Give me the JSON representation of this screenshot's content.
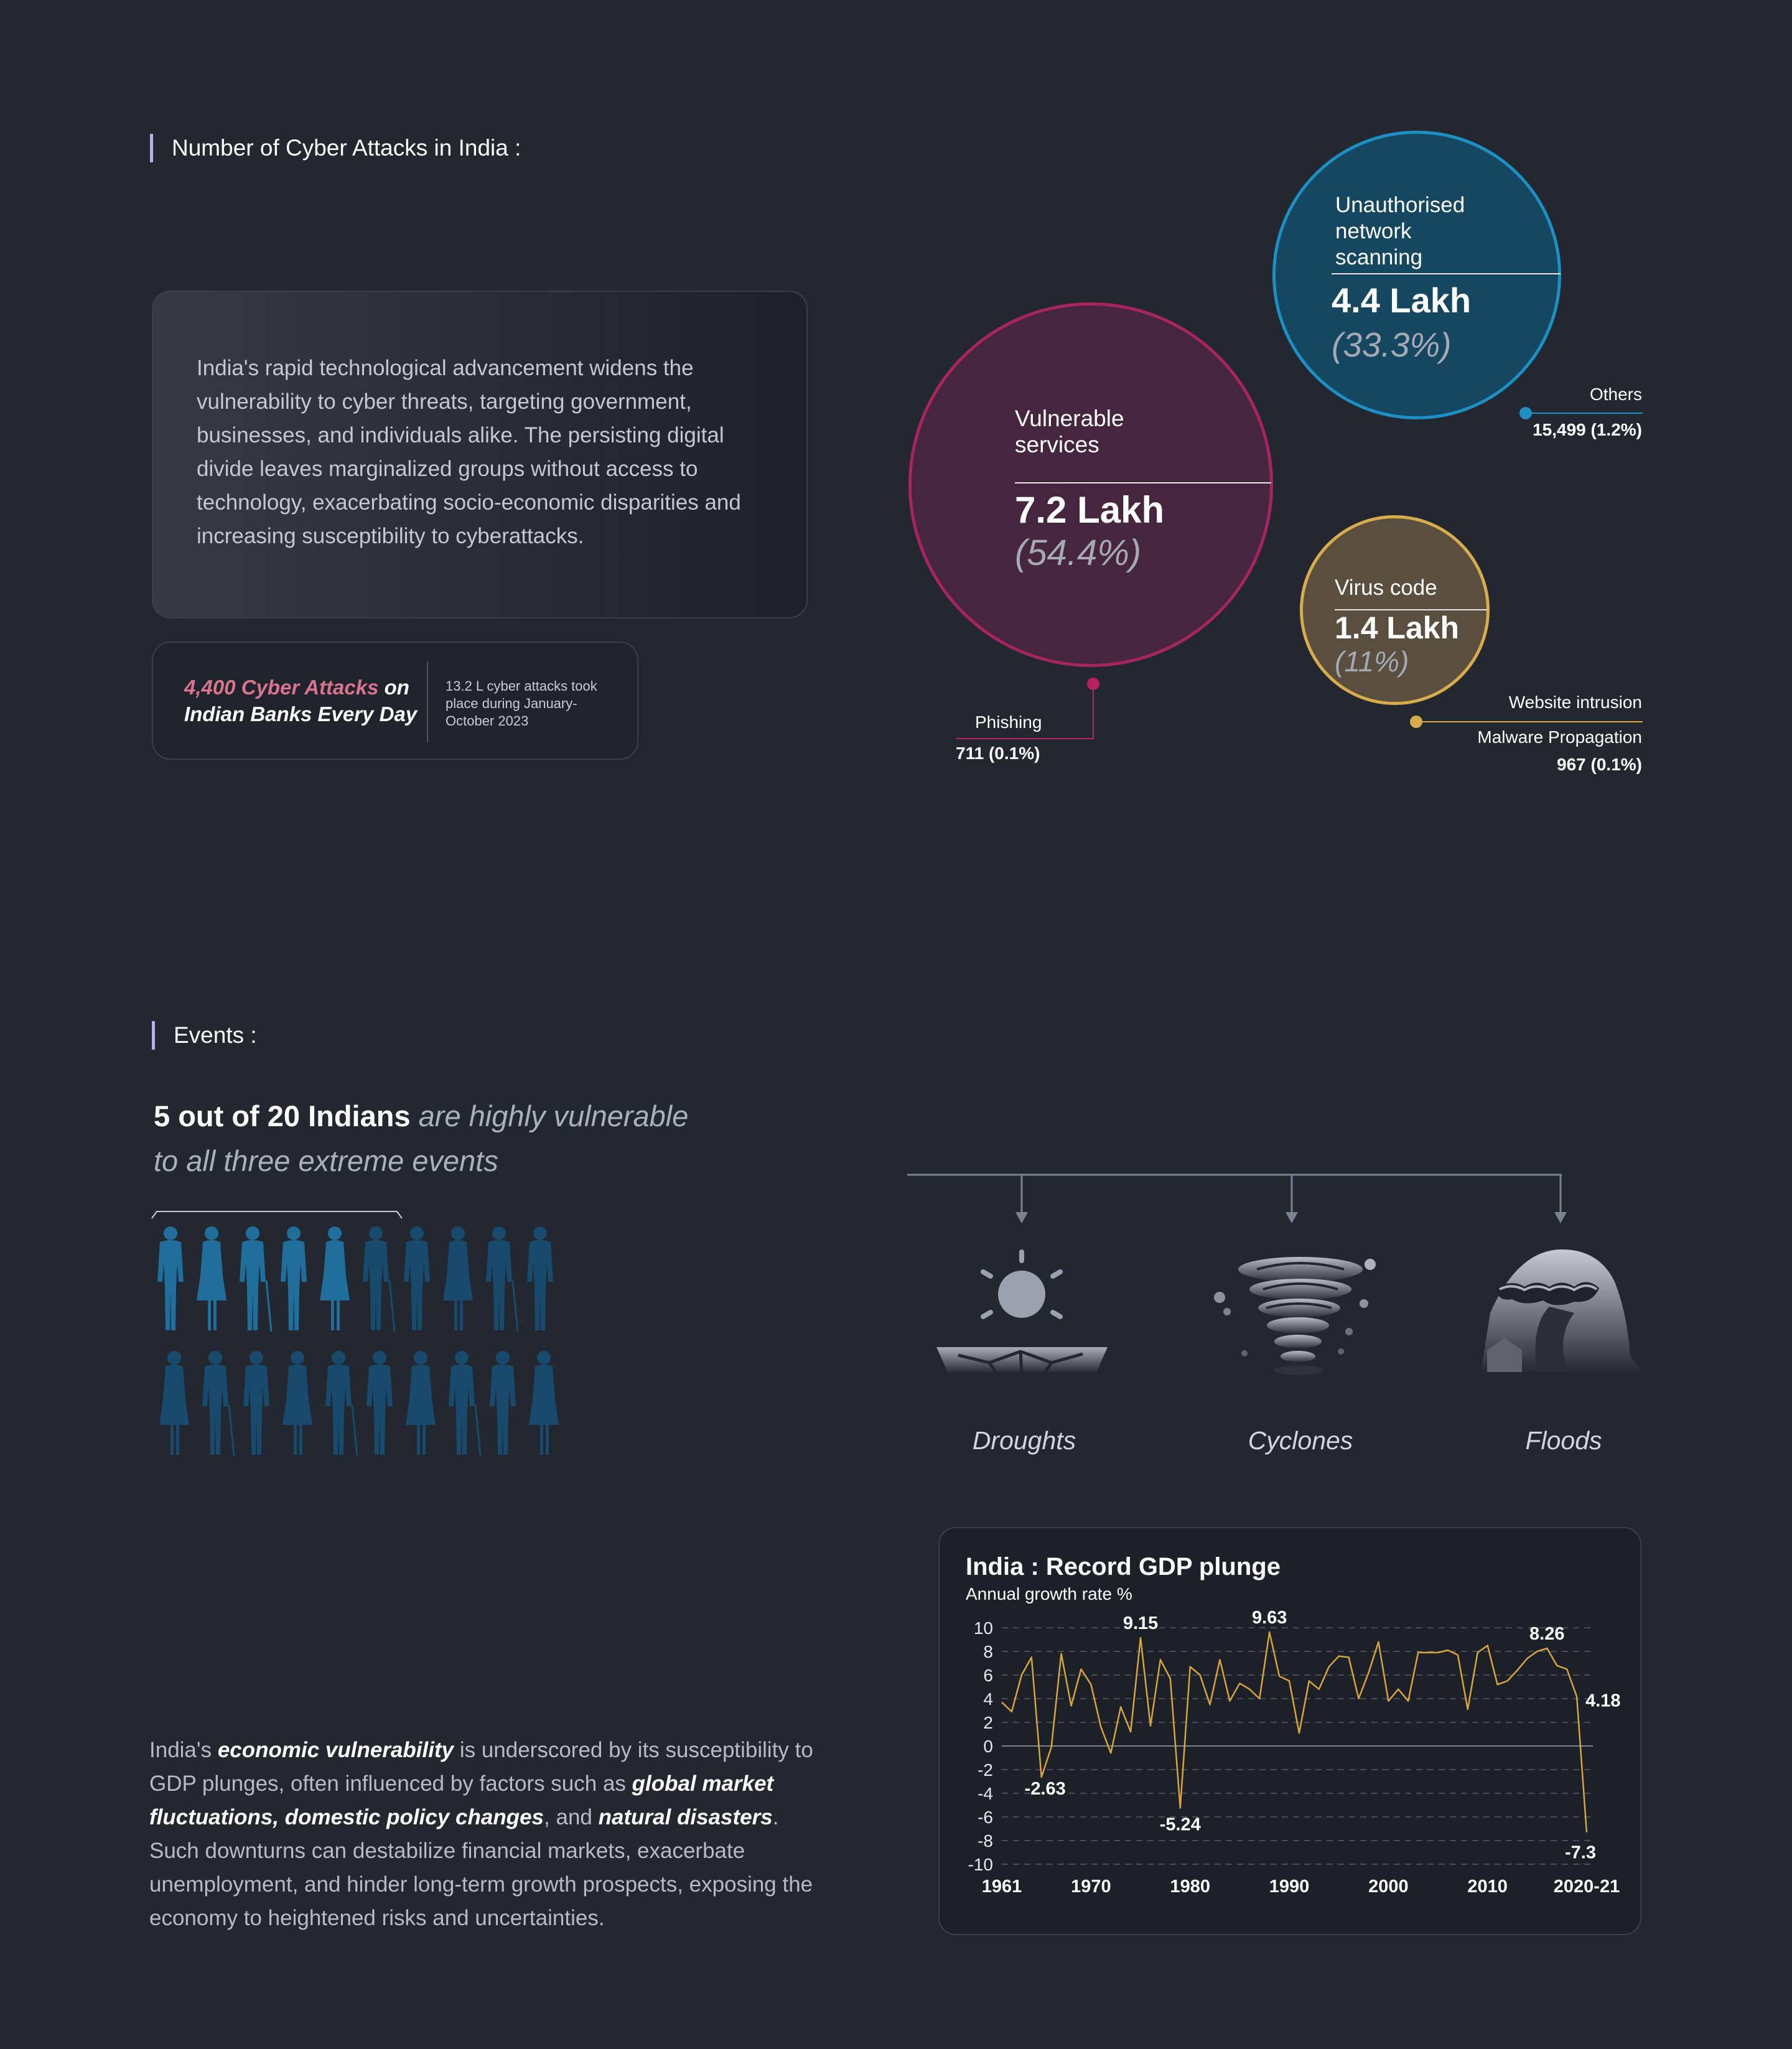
{
  "cyber": {
    "heading": "Number of Cyber Attacks in India :",
    "intro": "India's rapid technological advancement widens the vulnerability to cyber threats, targeting government, businesses, and individuals alike. The persisting digital divide leaves marginalized groups without access to technology, exacerbating socio-economic disparities and increasing susceptibility to cyberattacks.",
    "stat": {
      "highlight": "4,400 Cyber Attacks",
      "rest": " on Indian Banks Every Day",
      "note": "13.2 L cyber attacks took place during January-October 2023"
    },
    "bubbles": [
      {
        "label": "Vulnerable services",
        "value": "7.2 Lakh",
        "pct": "(54.4%)",
        "color": "#a8245e",
        "fill": "#46263f"
      },
      {
        "label": "Unauthorised network scanning",
        "value": "4.4 Lakh",
        "pct": "(33.3%)",
        "color": "#1c8fc4",
        "fill": "#164760"
      },
      {
        "label": "Virus code",
        "value": "1.4 Lakh",
        "pct": "(11%)",
        "color": "#d8ab4d",
        "fill": "#5a4f3f"
      }
    ],
    "annotations": {
      "phishing_label": "Phishing",
      "phishing_value": "711 (0.1%)",
      "others_label": "Others",
      "others_value": "15,499 (1.2%)",
      "website_label": "Website intrusion",
      "malware_label": "Malware Propagation",
      "malware_value": "967 (0.1%)"
    }
  },
  "events": {
    "heading": "Events :",
    "headline_bold": "5 out of 20 Indians",
    "headline_rest": " are highly vulnerable to all three extreme events",
    "highlighted_people": 5,
    "total_people": 20,
    "items": [
      {
        "label": "Droughts",
        "icon": "drought-icon"
      },
      {
        "label": "Cyclones",
        "icon": "cyclone-icon"
      },
      {
        "label": "Floods",
        "icon": "flood-icon"
      }
    ]
  },
  "economy": {
    "text_parts": [
      {
        "t": "India's ",
        "b": false
      },
      {
        "t": "economic vulnerability",
        "b": true
      },
      {
        "t": " is underscored by its susceptibility to GDP plunges, often influenced by factors such as ",
        "b": false
      },
      {
        "t": "global market fluctuations, domestic policy changes",
        "b": true
      },
      {
        "t": ", and ",
        "b": false
      },
      {
        "t": "natural disasters",
        "b": true
      },
      {
        "t": ". Such downturns can destabilize financial markets, exacerbate unemployment, and hinder long-term growth prospects, exposing the economy to heightened risks and uncertainties.",
        "b": false
      }
    ]
  },
  "chart_data": {
    "type": "line",
    "title": "India : Record GDP plunge",
    "subtitle": "Annual growth rate %",
    "ylim": [
      -10,
      10
    ],
    "yticks": [
      "10",
      "8",
      "6",
      "4",
      "2",
      "0",
      "-2",
      "-4",
      "-6",
      "-8",
      "-10"
    ],
    "xticks": [
      "1961",
      "1970",
      "1980",
      "1990",
      "2000",
      "2010",
      "2020-21"
    ],
    "xtick_years": [
      1961,
      1970,
      1980,
      1990,
      2000,
      2010,
      2020
    ],
    "line_color": "#d9a53a",
    "x": [
      1961,
      1962,
      1963,
      1964,
      1965,
      1966,
      1967,
      1968,
      1969,
      1970,
      1971,
      1972,
      1973,
      1974,
      1975,
      1976,
      1977,
      1978,
      1979,
      1980,
      1981,
      1982,
      1983,
      1984,
      1985,
      1986,
      1987,
      1988,
      1989,
      1990,
      1991,
      1992,
      1993,
      1994,
      1995,
      1996,
      1997,
      1998,
      1999,
      2000,
      2001,
      2002,
      2003,
      2004,
      2005,
      2006,
      2007,
      2008,
      2009,
      2010,
      2011,
      2012,
      2013,
      2014,
      2015,
      2016,
      2017,
      2018,
      2019,
      2020
    ],
    "values": [
      3.7,
      2.9,
      6.0,
      7.5,
      -2.63,
      -0.1,
      7.8,
      3.4,
      6.5,
      5.2,
      1.6,
      -0.6,
      3.3,
      1.2,
      9.15,
      1.7,
      7.3,
      5.7,
      -5.24,
      6.7,
      6.0,
      3.5,
      7.3,
      3.8,
      5.3,
      4.8,
      4.0,
      9.63,
      5.9,
      5.5,
      1.1,
      5.5,
      4.8,
      6.7,
      7.6,
      7.5,
      4.0,
      6.2,
      8.8,
      3.8,
      4.8,
      3.8,
      7.9,
      7.9,
      7.9,
      8.1,
      7.7,
      3.1,
      7.9,
      8.5,
      5.2,
      5.5,
      6.4,
      7.4,
      8.0,
      8.26,
      6.8,
      6.5,
      4.18,
      -7.3
    ],
    "labels": [
      {
        "year": 1965,
        "value": -2.63,
        "text": "-2.63"
      },
      {
        "year": 1975,
        "value": 9.15,
        "text": "9.15"
      },
      {
        "year": 1979,
        "value": -5.24,
        "text": "-5.24"
      },
      {
        "year": 1988,
        "value": 9.63,
        "text": "9.63"
      },
      {
        "year": 2016,
        "value": 8.26,
        "text": "8.26"
      },
      {
        "year": 2019,
        "value": 4.18,
        "text": "4.18"
      },
      {
        "year": 2020,
        "value": -7.3,
        "text": "-7.3"
      }
    ]
  }
}
